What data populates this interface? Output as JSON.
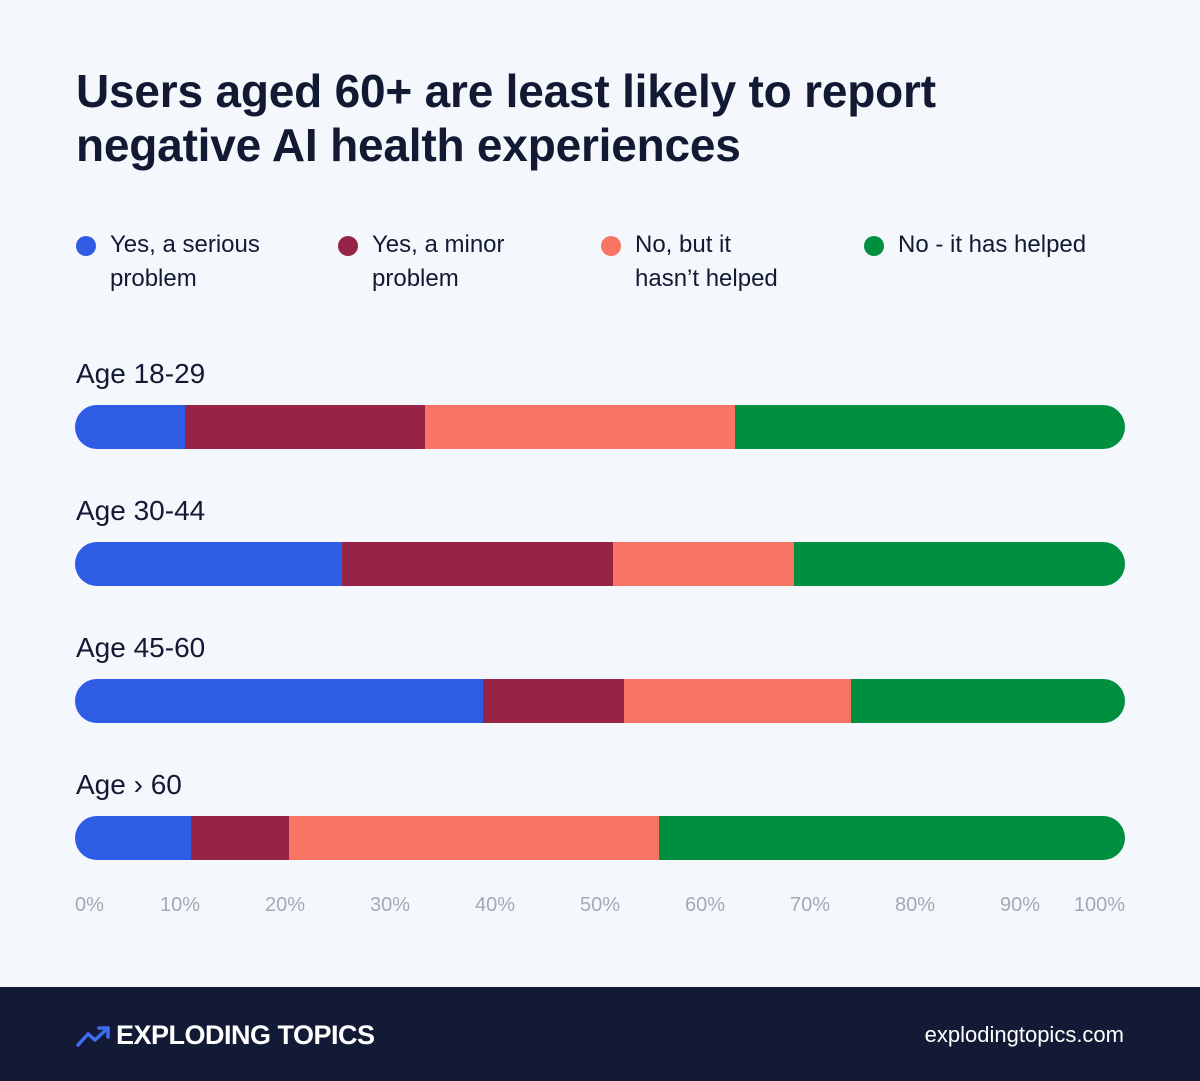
{
  "chart_data": {
    "type": "bar",
    "orientation": "horizontal",
    "stacked": true,
    "title_lines": [
      "Users aged 60+ are least likely to report",
      "negative AI health experiences"
    ],
    "legend_placement": "top",
    "series": [
      {
        "name_lines": [
          "Yes, a serious",
          "problem"
        ],
        "color": "#2e5ce5"
      },
      {
        "name_lines": [
          "Yes, a minor",
          "problem"
        ],
        "color": "#962447"
      },
      {
        "name_lines": [
          "No, but it",
          "hasn’t helped"
        ],
        "color": "#f87565"
      },
      {
        "name_lines": [
          "No - it has helped"
        ],
        "color": "#008e3f"
      }
    ],
    "categories": [
      "Age 18-29",
      "Age 30-44",
      "Age 45-60",
      "Age › 60"
    ],
    "values": [
      [
        10.5,
        22.8,
        29.6,
        37.1
      ],
      [
        25.4,
        25.8,
        17.3,
        31.5
      ],
      [
        38.9,
        13.4,
        21.6,
        26.1
      ],
      [
        11.0,
        9.4,
        35.2,
        44.4
      ]
    ],
    "xlim": [
      0,
      100
    ],
    "ticks": [
      "0%",
      "10%",
      "20%",
      "30%",
      "40%",
      "50%",
      "60%",
      "70%",
      "80%",
      "90%",
      "100%"
    ],
    "grid": false
  },
  "footer": {
    "brand": "EXPLODING TOPICS",
    "site": "explodingtopics.com"
  }
}
